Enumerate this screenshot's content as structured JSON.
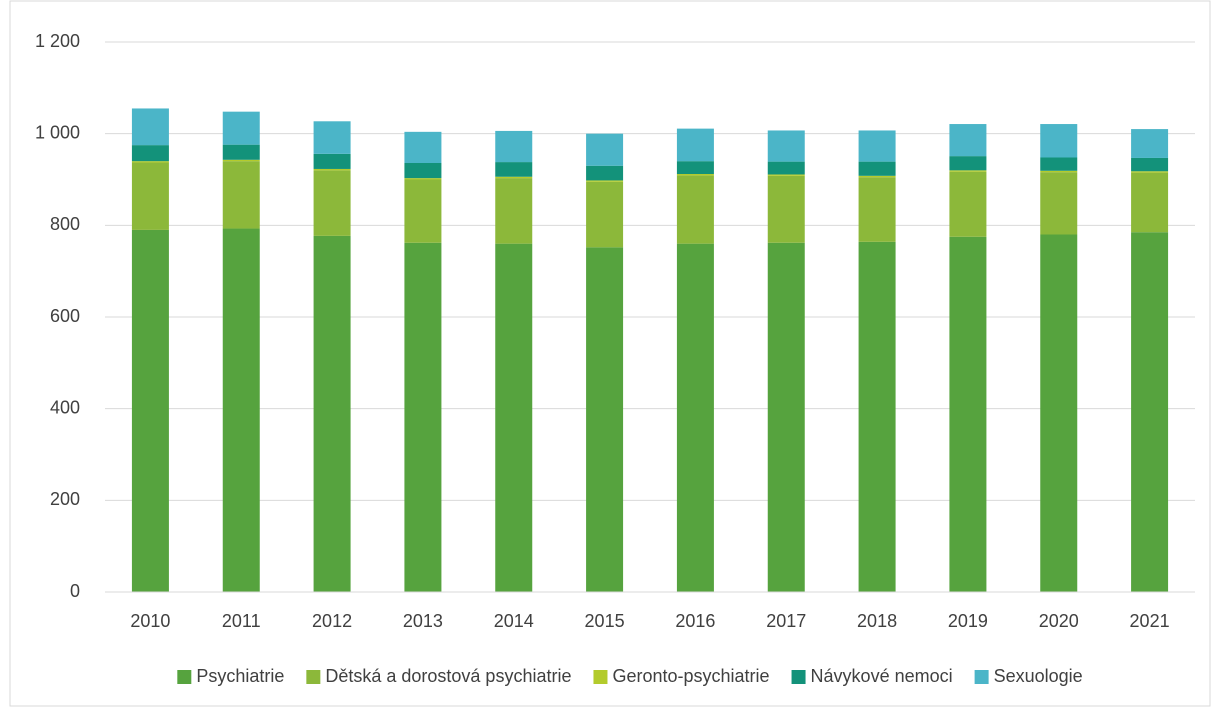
{
  "chart_data": {
    "type": "stacked_bar",
    "categories": [
      "2010",
      "2011",
      "2012",
      "2013",
      "2014",
      "2015",
      "2016",
      "2017",
      "2018",
      "2019",
      "2020",
      "2021"
    ],
    "series": [
      {
        "name": "Psychiatrie",
        "color": "#56a33e",
        "values": [
          790,
          793,
          777,
          762,
          760,
          752,
          760,
          762,
          764,
          775,
          780,
          785
        ]
      },
      {
        "name": "Dětská a dorostová psychiatrie",
        "color": "#8cb83a",
        "values": [
          147,
          147,
          143,
          138,
          143,
          143,
          149,
          146,
          141,
          142,
          136,
          130
        ]
      },
      {
        "name": "Geronto-psychiatrie",
        "color": "#b3cb2c",
        "values": [
          3,
          3,
          3,
          3,
          3,
          3,
          3,
          3,
          3,
          3,
          3,
          3
        ]
      },
      {
        "name": "Návykové nemoci",
        "color": "#13927a",
        "values": [
          35,
          33,
          33,
          33,
          32,
          32,
          28,
          28,
          31,
          31,
          29,
          29
        ]
      },
      {
        "name": "Sexuologie",
        "color": "#4bb5c8",
        "values": [
          80,
          72,
          71,
          68,
          68,
          70,
          71,
          68,
          68,
          70,
          73,
          63
        ]
      }
    ],
    "ylim": [
      0,
      1200
    ],
    "yticks": [
      0,
      200,
      400,
      600,
      800,
      {
        "value": 1000,
        "label": "1 000"
      },
      {
        "value": 1200,
        "label": "1 200"
      }
    ],
    "grid": true,
    "legend": "bottom"
  }
}
